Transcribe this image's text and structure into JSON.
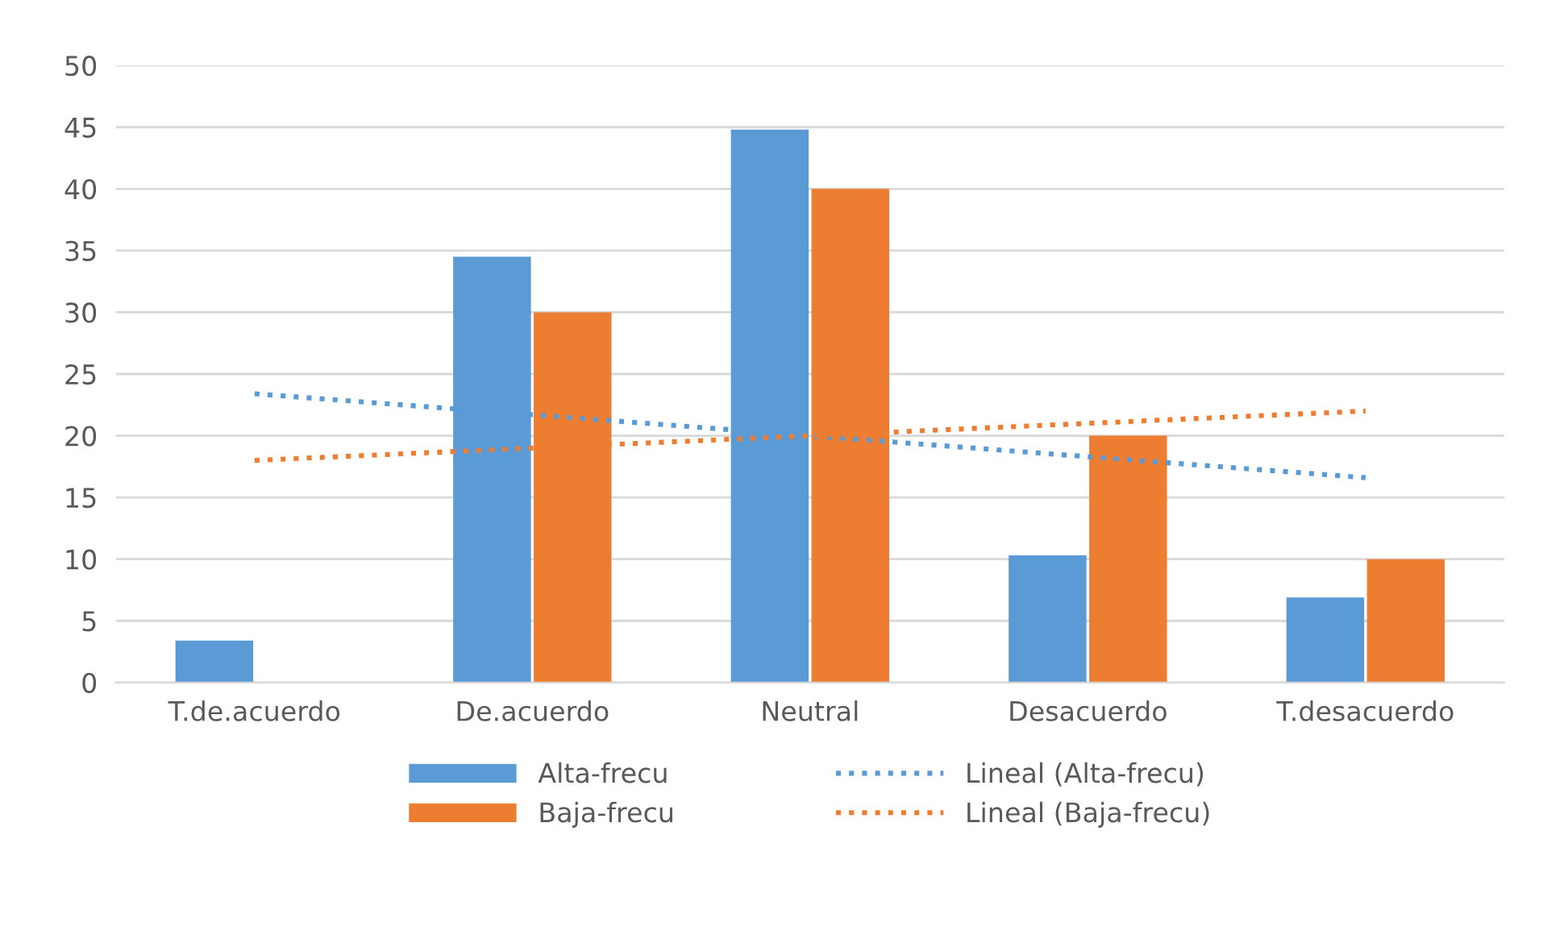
{
  "chart_data": {
    "type": "bar",
    "categories": [
      "T.de.acuerdo",
      "De.acuerdo",
      "Neutral",
      "Desacuerdo",
      "T.desacuerdo"
    ],
    "series": [
      {
        "name": "Alta-frecu",
        "color": "#5b9bd5",
        "values": [
          3.4,
          34.5,
          44.8,
          10.3,
          6.9
        ]
      },
      {
        "name": "Baja-frecu",
        "color": "#ed7d31",
        "values": [
          0,
          30,
          40,
          20,
          10
        ]
      },
      {
        "name": "Lineal (Alta-frecu)",
        "type": "line",
        "line_style": "dotted",
        "color": "#5b9bd5",
        "values": [
          23.4,
          21.7,
          20,
          18.3,
          16.6
        ]
      },
      {
        "name": "Lineal (Baja-frecu)",
        "type": "line",
        "line_style": "dotted",
        "color": "#ed7d31",
        "values": [
          18,
          19,
          20,
          21,
          22
        ]
      }
    ],
    "ylim": [
      0,
      50
    ],
    "yticks": [
      0,
      5,
      10,
      15,
      20,
      25,
      30,
      35,
      40,
      45,
      50
    ],
    "grid": "y",
    "legend": "bottom"
  }
}
